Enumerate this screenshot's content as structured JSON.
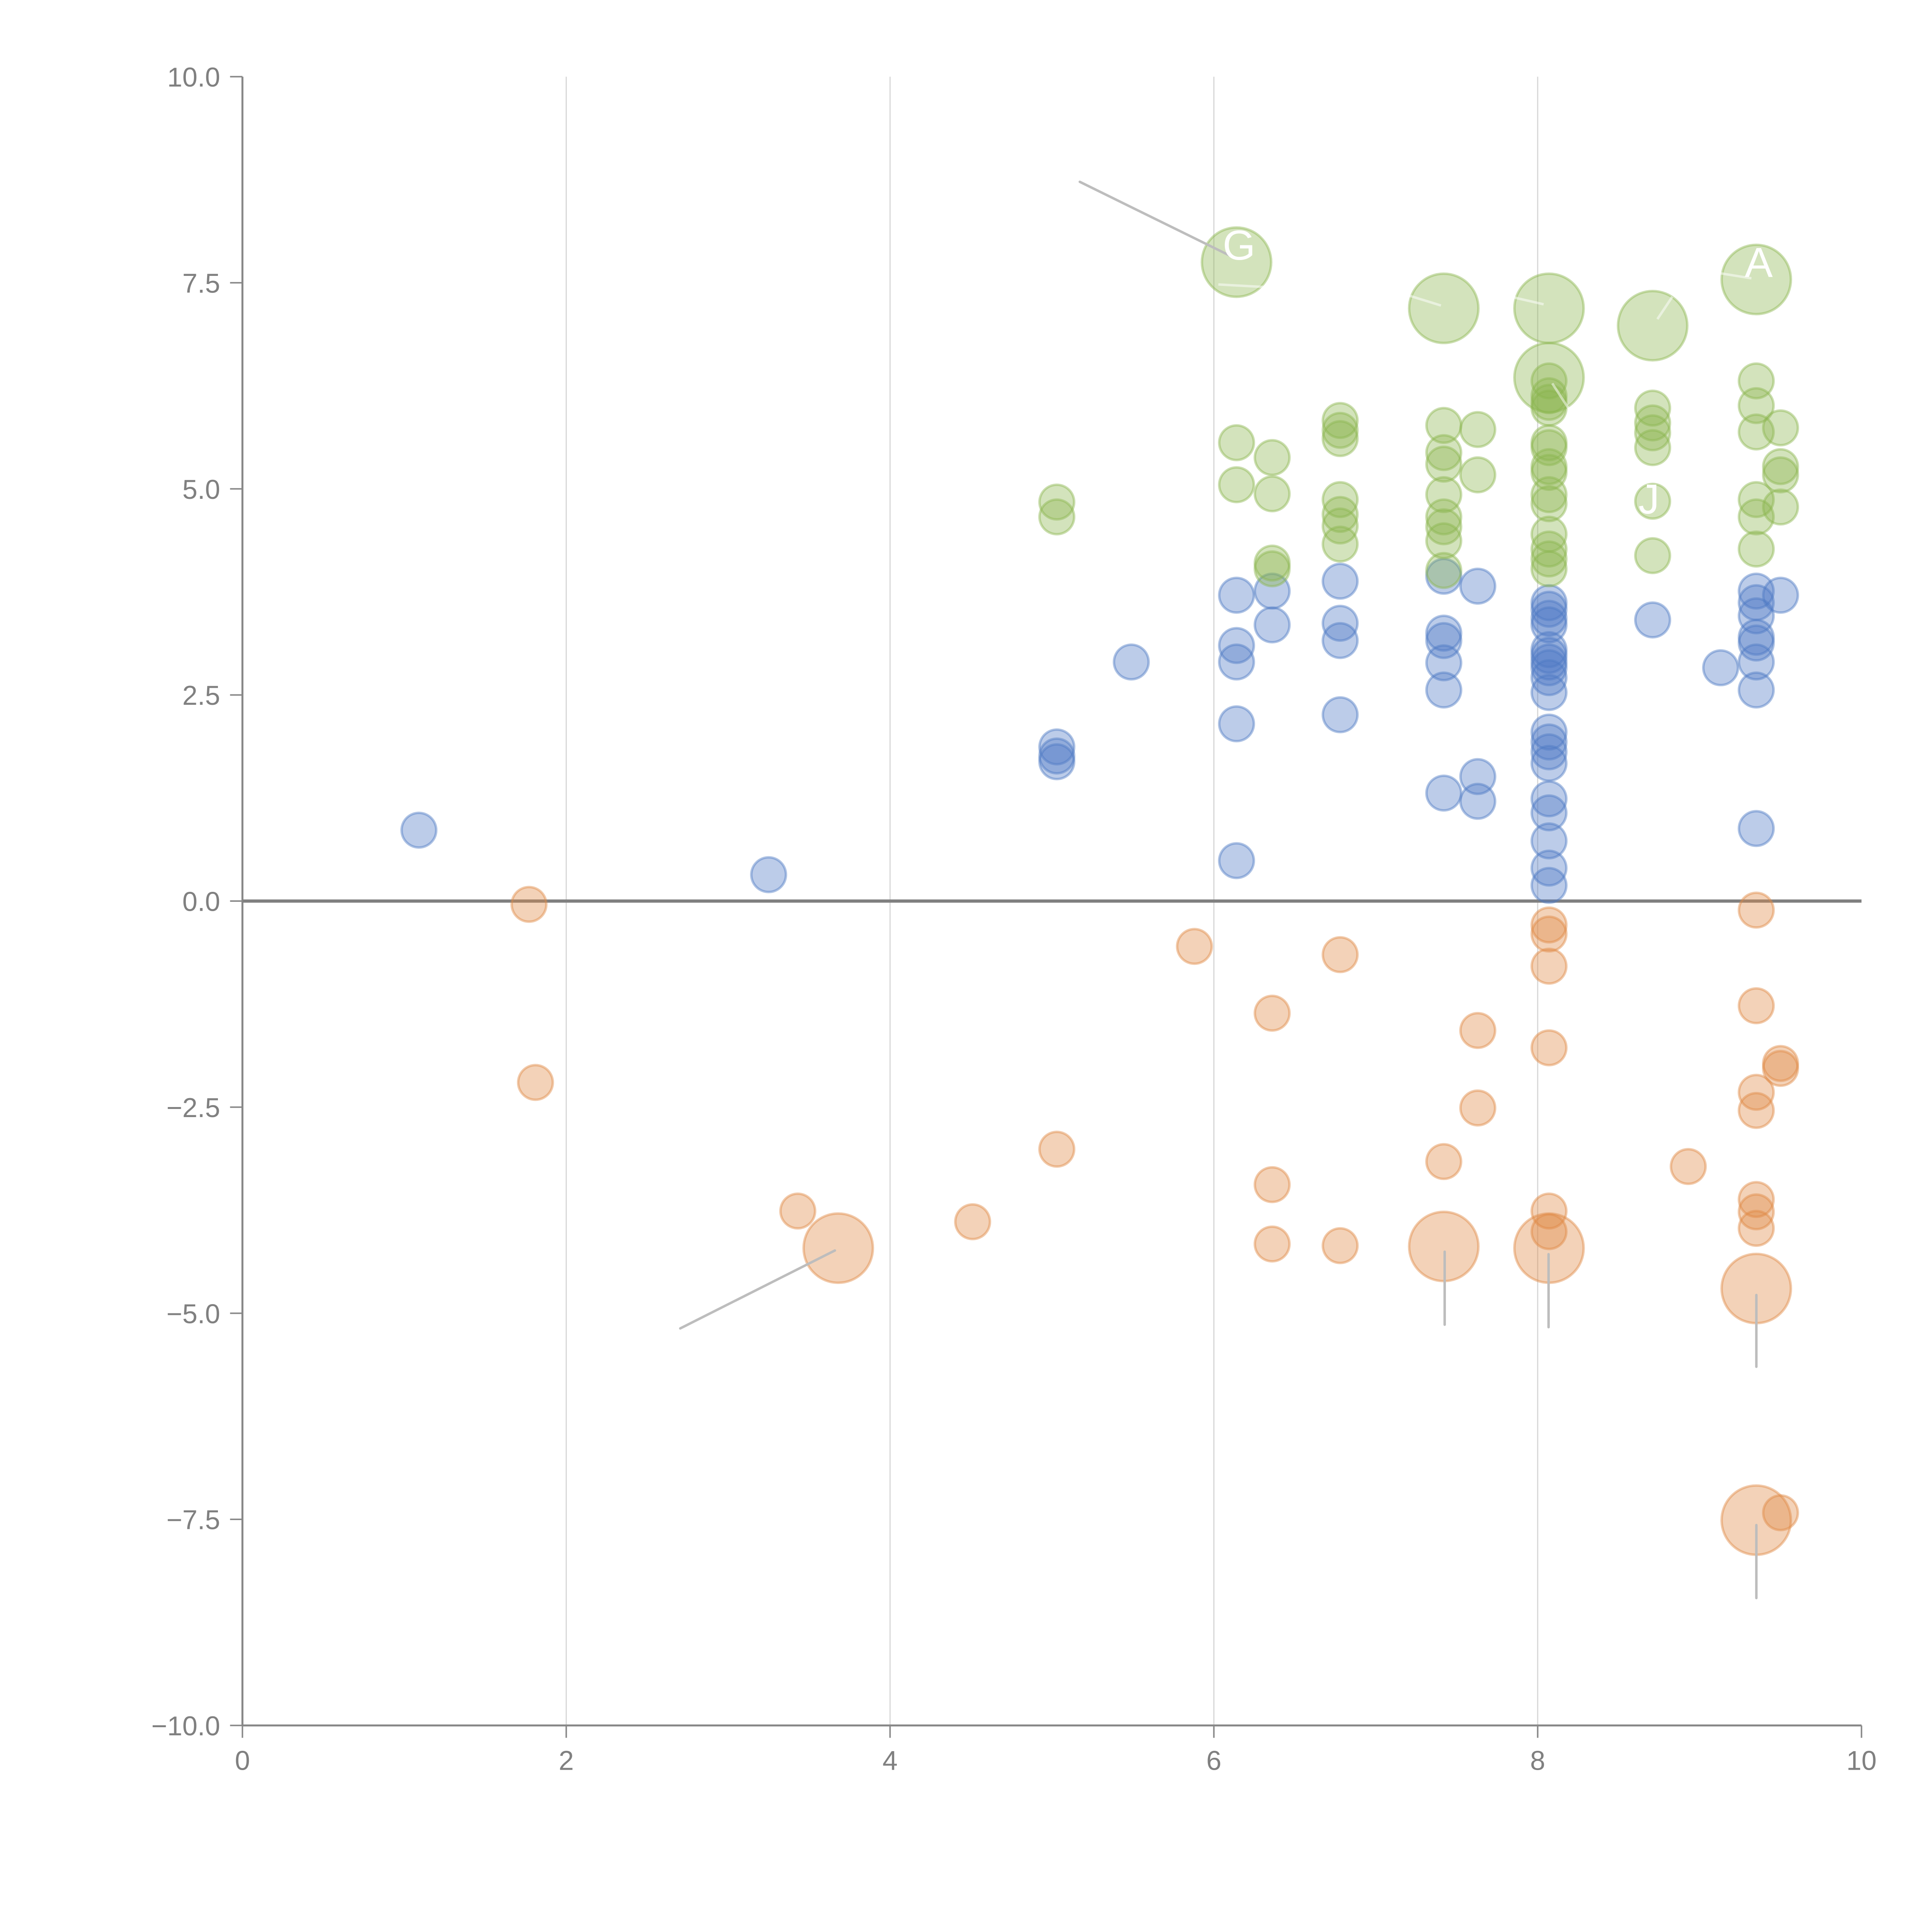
{
  "chart_data": {
    "type": "scatter",
    "title": "",
    "xlabel": "",
    "ylabel": "",
    "xlim": [
      0,
      10
    ],
    "ylim": [
      -10,
      10
    ],
    "x_ticks": [
      "0",
      "2",
      "4",
      "6",
      "8",
      "10"
    ],
    "x_tick_values": [
      0,
      2,
      4,
      6,
      8,
      10
    ],
    "y_ticks": [
      "10.0",
      "7.5",
      "5.0",
      "2.5",
      "0.0",
      "−2.5",
      "−5.0",
      "−7.5",
      "−10.0"
    ],
    "y_tick_values": [
      10,
      7.5,
      5,
      2.5,
      0,
      -2.5,
      -5,
      -7.5,
      -10
    ],
    "grid": "vertical",
    "zero_line": true,
    "legend": "none",
    "series": [
      {
        "name": "blue",
        "color": "#4e79c4",
        "points": [
          {
            "x": 1.09,
            "y": 0.86,
            "s": 1
          },
          {
            "x": 3.25,
            "y": 0.32,
            "s": 1
          },
          {
            "x": 5.03,
            "y": 1.87,
            "s": 1
          },
          {
            "x": 5.03,
            "y": 1.76,
            "s": 1
          },
          {
            "x": 5.03,
            "y": 1.69,
            "s": 1
          },
          {
            "x": 5.49,
            "y": 2.9,
            "s": 1
          },
          {
            "x": 6.14,
            "y": 3.71,
            "s": 1
          },
          {
            "x": 6.14,
            "y": 3.1,
            "s": 1
          },
          {
            "x": 6.14,
            "y": 2.9,
            "s": 1
          },
          {
            "x": 6.14,
            "y": 2.15,
            "s": 1
          },
          {
            "x": 6.14,
            "y": 0.49,
            "s": 1
          },
          {
            "x": 6.36,
            "y": 3.76,
            "s": 1
          },
          {
            "x": 6.36,
            "y": 3.35,
            "s": 1
          },
          {
            "x": 6.78,
            "y": 3.88,
            "s": 1
          },
          {
            "x": 6.78,
            "y": 3.37,
            "s": 1
          },
          {
            "x": 6.78,
            "y": 3.16,
            "s": 1
          },
          {
            "x": 6.78,
            "y": 2.26,
            "s": 1
          },
          {
            "x": 7.42,
            "y": 3.94,
            "s": 1
          },
          {
            "x": 7.42,
            "y": 3.25,
            "s": 1
          },
          {
            "x": 7.42,
            "y": 3.16,
            "s": 1
          },
          {
            "x": 7.42,
            "y": 2.89,
            "s": 1
          },
          {
            "x": 7.42,
            "y": 2.56,
            "s": 1
          },
          {
            "x": 7.42,
            "y": 1.31,
            "s": 1
          },
          {
            "x": 7.63,
            "y": 3.82,
            "s": 1
          },
          {
            "x": 7.63,
            "y": 1.51,
            "s": 1
          },
          {
            "x": 7.63,
            "y": 1.21,
            "s": 1
          },
          {
            "x": 8.07,
            "y": 3.62,
            "s": 1
          },
          {
            "x": 8.07,
            "y": 3.54,
            "s": 1
          },
          {
            "x": 8.07,
            "y": 3.43,
            "s": 1
          },
          {
            "x": 8.07,
            "y": 3.35,
            "s": 1
          },
          {
            "x": 8.07,
            "y": 3.05,
            "s": 1
          },
          {
            "x": 8.07,
            "y": 2.98,
            "s": 1
          },
          {
            "x": 8.07,
            "y": 2.9,
            "s": 1
          },
          {
            "x": 8.07,
            "y": 2.83,
            "s": 1
          },
          {
            "x": 8.07,
            "y": 2.71,
            "s": 1
          },
          {
            "x": 8.07,
            "y": 2.53,
            "s": 1
          },
          {
            "x": 8.07,
            "y": 2.05,
            "s": 1
          },
          {
            "x": 8.07,
            "y": 1.93,
            "s": 1
          },
          {
            "x": 8.07,
            "y": 1.81,
            "s": 1
          },
          {
            "x": 8.07,
            "y": 1.67,
            "s": 1
          },
          {
            "x": 8.07,
            "y": 1.24,
            "s": 1
          },
          {
            "x": 8.07,
            "y": 1.07,
            "s": 1
          },
          {
            "x": 8.07,
            "y": 0.73,
            "s": 1
          },
          {
            "x": 8.07,
            "y": 0.4,
            "s": 1
          },
          {
            "x": 8.07,
            "y": 0.19,
            "s": 1
          },
          {
            "x": 8.71,
            "y": 3.41,
            "s": 1
          },
          {
            "x": 9.13,
            "y": 2.83,
            "s": 1
          },
          {
            "x": 9.35,
            "y": 3.76,
            "s": 1
          },
          {
            "x": 9.35,
            "y": 3.62,
            "s": 1
          },
          {
            "x": 9.35,
            "y": 3.46,
            "s": 1
          },
          {
            "x": 9.35,
            "y": 3.2,
            "s": 1
          },
          {
            "x": 9.35,
            "y": 3.13,
            "s": 1
          },
          {
            "x": 9.35,
            "y": 2.9,
            "s": 1
          },
          {
            "x": 9.35,
            "y": 2.56,
            "s": 1
          },
          {
            "x": 9.35,
            "y": 0.88,
            "s": 1
          },
          {
            "x": 9.5,
            "y": 3.71,
            "s": 1
          }
        ]
      },
      {
        "name": "green",
        "color": "#8cb54f",
        "points": [
          {
            "x": 5.03,
            "y": 4.84,
            "s": 1
          },
          {
            "x": 5.03,
            "y": 4.66,
            "s": 1
          },
          {
            "x": 6.14,
            "y": 7.75,
            "s": 4,
            "label": "G"
          },
          {
            "x": 6.14,
            "y": 5.56,
            "s": 1
          },
          {
            "x": 6.14,
            "y": 5.05,
            "s": 1
          },
          {
            "x": 6.36,
            "y": 5.38,
            "s": 1
          },
          {
            "x": 6.36,
            "y": 4.94,
            "s": 1
          },
          {
            "x": 6.36,
            "y": 4.1,
            "s": 1
          },
          {
            "x": 6.36,
            "y": 4.03,
            "s": 1
          },
          {
            "x": 6.78,
            "y": 5.83,
            "s": 1
          },
          {
            "x": 6.78,
            "y": 5.71,
            "s": 1
          },
          {
            "x": 6.78,
            "y": 5.61,
            "s": 1
          },
          {
            "x": 6.78,
            "y": 4.87,
            "s": 1
          },
          {
            "x": 6.78,
            "y": 4.69,
            "s": 1
          },
          {
            "x": 6.78,
            "y": 4.55,
            "s": 1
          },
          {
            "x": 6.78,
            "y": 4.33,
            "s": 1
          },
          {
            "x": 7.42,
            "y": 7.19,
            "s": 4
          },
          {
            "x": 7.42,
            "y": 5.77,
            "s": 1
          },
          {
            "x": 7.42,
            "y": 5.44,
            "s": 1
          },
          {
            "x": 7.42,
            "y": 5.3,
            "s": 1
          },
          {
            "x": 7.42,
            "y": 4.93,
            "s": 1
          },
          {
            "x": 7.42,
            "y": 4.66,
            "s": 1
          },
          {
            "x": 7.42,
            "y": 4.54,
            "s": 1
          },
          {
            "x": 7.42,
            "y": 4.37,
            "s": 1
          },
          {
            "x": 7.42,
            "y": 4.01,
            "s": 1
          },
          {
            "x": 7.63,
            "y": 5.72,
            "s": 1
          },
          {
            "x": 7.63,
            "y": 5.17,
            "s": 1
          },
          {
            "x": 8.07,
            "y": 7.19,
            "s": 4
          },
          {
            "x": 8.07,
            "y": 6.35,
            "s": 4
          },
          {
            "x": 8.07,
            "y": 6.31,
            "s": 1
          },
          {
            "x": 8.07,
            "y": 6.13,
            "s": 1
          },
          {
            "x": 8.07,
            "y": 6.05,
            "s": 1
          },
          {
            "x": 8.07,
            "y": 5.98,
            "s": 1
          },
          {
            "x": 8.07,
            "y": 5.56,
            "s": 1
          },
          {
            "x": 8.07,
            "y": 5.5,
            "s": 1
          },
          {
            "x": 8.07,
            "y": 5.27,
            "s": 1
          },
          {
            "x": 8.07,
            "y": 5.2,
            "s": 1
          },
          {
            "x": 8.07,
            "y": 4.93,
            "s": 1
          },
          {
            "x": 8.07,
            "y": 4.82,
            "s": 1
          },
          {
            "x": 8.07,
            "y": 4.45,
            "s": 1
          },
          {
            "x": 8.07,
            "y": 4.27,
            "s": 1
          },
          {
            "x": 8.07,
            "y": 4.15,
            "s": 1
          },
          {
            "x": 8.07,
            "y": 4.03,
            "s": 1
          },
          {
            "x": 8.71,
            "y": 6.98,
            "s": 4
          },
          {
            "x": 8.71,
            "y": 5.98,
            "s": 1
          },
          {
            "x": 8.71,
            "y": 5.8,
            "s": 1
          },
          {
            "x": 8.71,
            "y": 5.68,
            "s": 1
          },
          {
            "x": 8.71,
            "y": 5.5,
            "s": 1
          },
          {
            "x": 8.71,
            "y": 4.85,
            "s": 1,
            "label": "J"
          },
          {
            "x": 8.71,
            "y": 4.19,
            "s": 1
          },
          {
            "x": 9.35,
            "y": 7.54,
            "s": 4,
            "label": "A"
          },
          {
            "x": 9.35,
            "y": 6.31,
            "s": 1
          },
          {
            "x": 9.35,
            "y": 6.01,
            "s": 1
          },
          {
            "x": 9.35,
            "y": 5.69,
            "s": 1
          },
          {
            "x": 9.35,
            "y": 4.87,
            "s": 1
          },
          {
            "x": 9.35,
            "y": 4.66,
            "s": 1
          },
          {
            "x": 9.35,
            "y": 4.27,
            "s": 1
          },
          {
            "x": 9.5,
            "y": 5.74,
            "s": 1
          },
          {
            "x": 9.5,
            "y": 5.27,
            "s": 1
          },
          {
            "x": 9.5,
            "y": 5.17,
            "s": 1
          },
          {
            "x": 9.5,
            "y": 4.78,
            "s": 1
          }
        ]
      },
      {
        "name": "orange",
        "color": "#e08a45",
        "points": [
          {
            "x": 1.77,
            "y": -0.04,
            "s": 1
          },
          {
            "x": 1.81,
            "y": -2.2,
            "s": 1
          },
          {
            "x": 3.43,
            "y": -3.76,
            "s": 1
          },
          {
            "x": 3.68,
            "y": -4.21,
            "s": 4
          },
          {
            "x": 4.51,
            "y": -3.89,
            "s": 1
          },
          {
            "x": 5.03,
            "y": -3.01,
            "s": 1
          },
          {
            "x": 5.88,
            "y": -0.55,
            "s": 1
          },
          {
            "x": 6.36,
            "y": -1.36,
            "s": 1
          },
          {
            "x": 6.36,
            "y": -3.44,
            "s": 1
          },
          {
            "x": 6.36,
            "y": -4.16,
            "s": 1
          },
          {
            "x": 6.78,
            "y": -0.65,
            "s": 1
          },
          {
            "x": 6.78,
            "y": -4.18,
            "s": 1
          },
          {
            "x": 7.42,
            "y": -3.16,
            "s": 1
          },
          {
            "x": 7.42,
            "y": -4.19,
            "s": 4
          },
          {
            "x": 7.63,
            "y": -1.57,
            "s": 1
          },
          {
            "x": 7.63,
            "y": -2.51,
            "s": 1
          },
          {
            "x": 8.07,
            "y": -0.29,
            "s": 1
          },
          {
            "x": 8.07,
            "y": -0.4,
            "s": 1
          },
          {
            "x": 8.07,
            "y": -0.79,
            "s": 1
          },
          {
            "x": 8.07,
            "y": -1.78,
            "s": 1
          },
          {
            "x": 8.07,
            "y": -3.76,
            "s": 1
          },
          {
            "x": 8.07,
            "y": -4.01,
            "s": 1
          },
          {
            "x": 8.07,
            "y": -4.21,
            "s": 4
          },
          {
            "x": 8.93,
            "y": -3.22,
            "s": 1
          },
          {
            "x": 9.35,
            "y": -0.11,
            "s": 1
          },
          {
            "x": 9.35,
            "y": -1.27,
            "s": 1
          },
          {
            "x": 9.35,
            "y": -2.32,
            "s": 1
          },
          {
            "x": 9.35,
            "y": -2.54,
            "s": 1
          },
          {
            "x": 9.35,
            "y": -3.62,
            "s": 1
          },
          {
            "x": 9.35,
            "y": -3.77,
            "s": 1
          },
          {
            "x": 9.35,
            "y": -3.97,
            "s": 1
          },
          {
            "x": 9.35,
            "y": -4.7,
            "s": 4
          },
          {
            "x": 9.35,
            "y": -7.51,
            "s": 4
          },
          {
            "x": 9.5,
            "y": -1.97,
            "s": 1
          },
          {
            "x": 9.5,
            "y": -2.03,
            "s": 1
          },
          {
            "x": 9.5,
            "y": -7.42,
            "s": 1
          }
        ]
      }
    ],
    "annotations": [
      "G",
      "A",
      "J"
    ]
  }
}
